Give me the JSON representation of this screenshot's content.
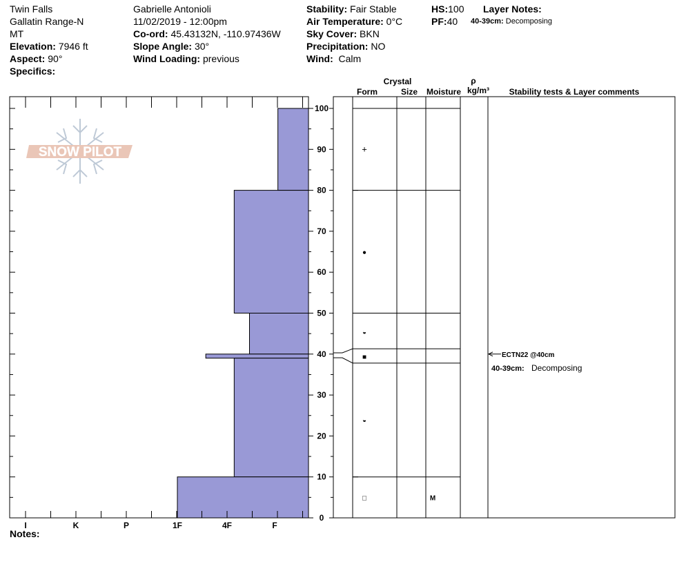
{
  "header": {
    "location": "Twin Falls",
    "range": "Gallatin Range-N",
    "state": "MT",
    "elevation_label": "Elevation:",
    "elevation": "7946 ft",
    "aspect_label": "Aspect:",
    "aspect": "90°",
    "specifics_label": "Specifics:",
    "observer": "Gabrielle Antonioli",
    "datetime": "11/02/2019 - 12:00pm",
    "coord_label": "Co-ord:",
    "coord": "45.43132N, -110.97436W",
    "slope_label": "Slope Angle:",
    "slope": "30°",
    "wind_loading_label": "Wind Loading:",
    "wind_loading": "previous",
    "stability_label": "Stability:",
    "stability": "Fair Stable",
    "air_temp_label": "Air Temperature:",
    "air_temp": "0°C",
    "sky_label": "Sky Cover:",
    "sky": "BKN",
    "precip_label": "Precipitation:",
    "precip": "NO",
    "wind_label": "Wind:",
    "wind": "Calm",
    "hs_label": "HS:",
    "hs": "100",
    "pf_label": "PF:",
    "pf": "40",
    "layer_notes_label": "Layer Notes:",
    "layer_note_range": "40-39cm:",
    "layer_note_text": "Decomposing"
  },
  "logo_text": "SNOW PILOT",
  "notes_label": "Notes:",
  "columns": {
    "crystal": "Crystal",
    "form": "Form",
    "size": "Size",
    "moisture": "Moisture",
    "rho": "ρ",
    "density_unit": "kg/m³",
    "stability_comments": "Stability tests & Layer comments"
  },
  "colors": {
    "bar": "#9999d6",
    "bar_edge": "#000000",
    "logo": "#e8b8a8"
  },
  "chart_data": {
    "type": "bar",
    "orientation": "horizontal",
    "title": "",
    "hardness_categories": [
      "I",
      "K",
      "P",
      "1F",
      "4F",
      "F"
    ],
    "y_ticks": [
      0,
      10,
      20,
      30,
      40,
      50,
      60,
      70,
      80,
      90,
      100
    ],
    "ylim": [
      0,
      100
    ],
    "layers": [
      {
        "bottom": 80,
        "top": 100,
        "hardness_index": 0.7
      },
      {
        "bottom": 50,
        "top": 80,
        "hardness_index": 1.7
      },
      {
        "bottom": 40,
        "top": 50,
        "hardness_index": 1.35
      },
      {
        "bottom": 39,
        "top": 40,
        "hardness_index": 2.35
      },
      {
        "bottom": 10,
        "top": 39,
        "hardness_index": 1.7
      },
      {
        "bottom": 0,
        "top": 10,
        "hardness_index": 3.0
      }
    ],
    "grain_forms": [
      {
        "height": 90,
        "symbol": "+"
      },
      {
        "height": 65,
        "symbol": "●"
      },
      {
        "height": 45.5,
        "symbol": "◒"
      },
      {
        "height": 39.5,
        "symbol": "■"
      },
      {
        "height": 24,
        "symbol": "◒"
      },
      {
        "height": 5,
        "symbol": "□"
      }
    ],
    "moisture": [
      {
        "height": 5,
        "label": "M"
      }
    ],
    "stability_tests": [
      {
        "height": 40,
        "label": "ECTN22 @40cm"
      }
    ],
    "layer_comments": [
      {
        "range": "40-39cm:",
        "text": "Decomposing"
      }
    ]
  }
}
